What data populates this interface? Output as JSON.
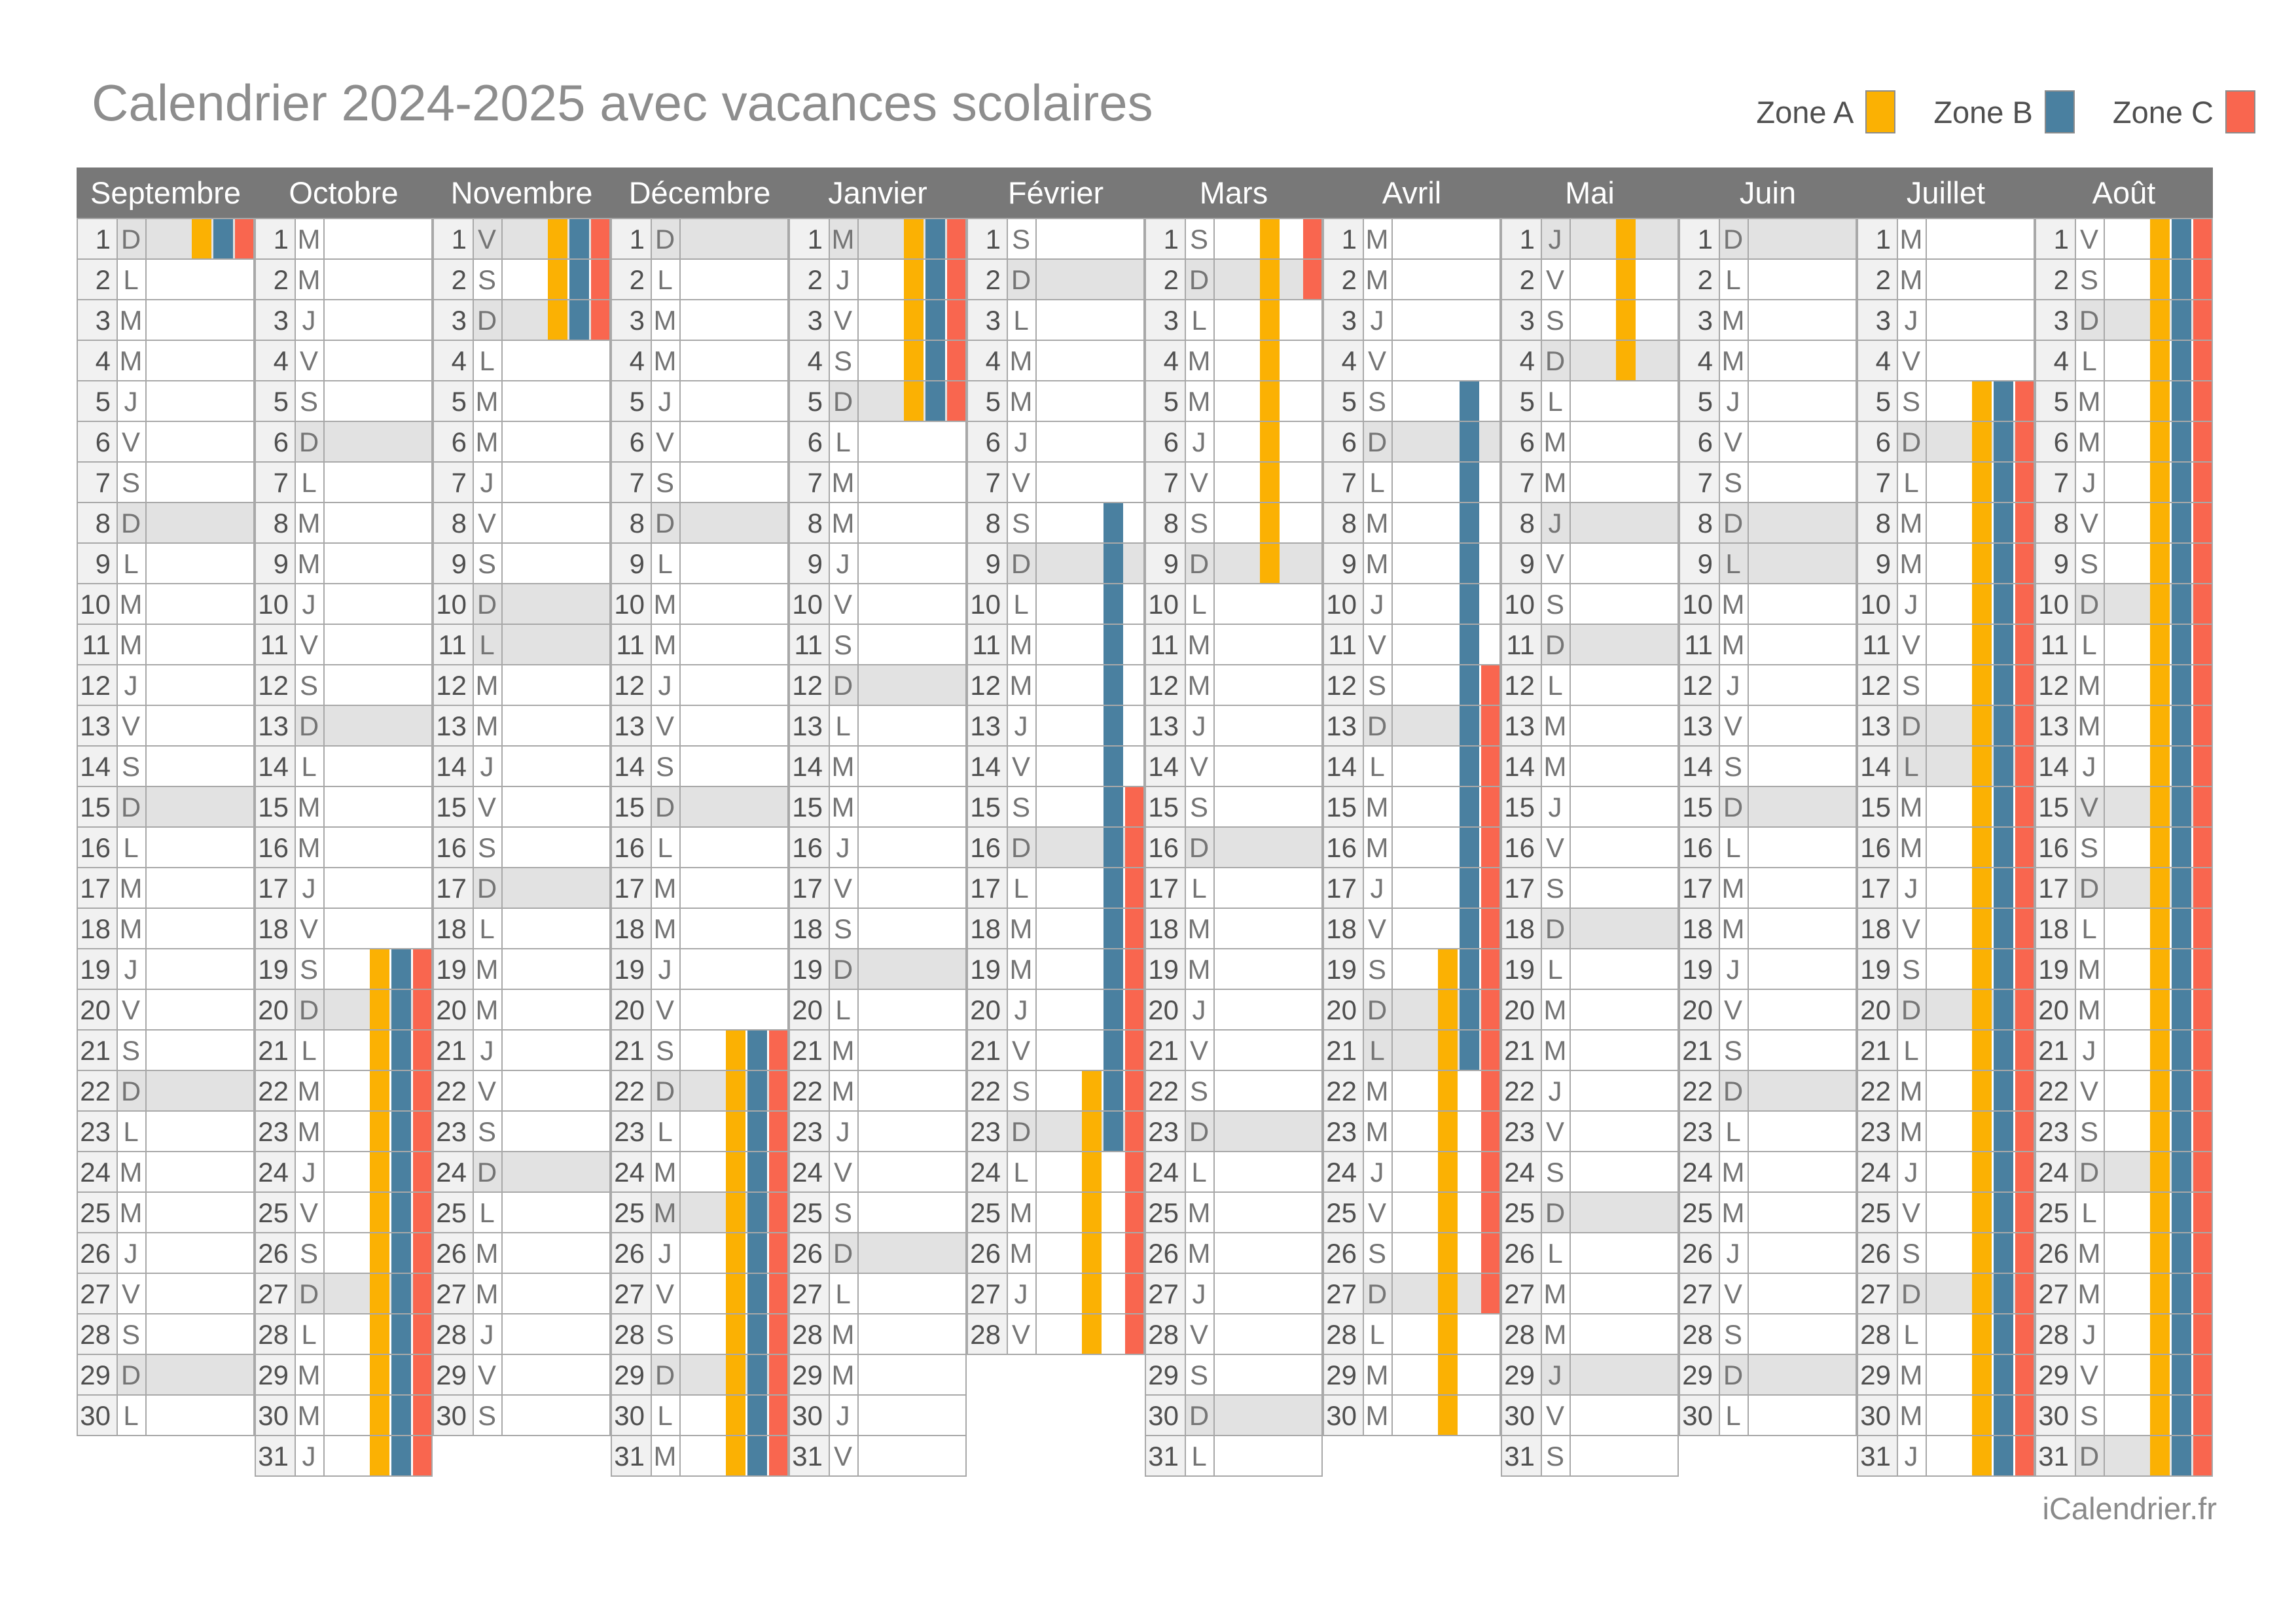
{
  "title": "Calendrier 2024-2025 avec vacances scolaires",
  "footer": "iCalendrier.fr",
  "legend": {
    "items": [
      {
        "label": "Zone A",
        "zone": "A",
        "color": "#FBB103"
      },
      {
        "label": "Zone B",
        "zone": "B",
        "color": "#4A80A0"
      },
      {
        "label": "Zone C",
        "zone": "C",
        "color": "#F9664F"
      }
    ]
  },
  "colors": {
    "zone_a": "#FBB103",
    "zone_b": "#4A80A0",
    "zone_c": "#F9664F",
    "header_bg": "#787878",
    "header_text": "#FFFFFF",
    "title_text": "#8D8D8D",
    "number_cell_bg": "#F1F1F1",
    "weekend_holiday_bg": "#E2E2E2",
    "grid_line": "#A8A8A8",
    "day_number_text": "#4F4F4F",
    "day_letter_text": "#757575",
    "footer_text": "#8A8A8A"
  },
  "months": [
    {
      "name": "Septembre",
      "days": 30,
      "letters": [
        "D",
        "L",
        "M",
        "M",
        "J",
        "V",
        "S",
        "D",
        "L",
        "M",
        "M",
        "J",
        "V",
        "S",
        "D",
        "L",
        "M",
        "M",
        "J",
        "V",
        "S",
        "D",
        "L",
        "M",
        "M",
        "J",
        "V",
        "S",
        "D",
        "L"
      ],
      "shaded_days": [
        1,
        8,
        15,
        22,
        29
      ],
      "holiday_bars": [
        {
          "zone": "A",
          "from": 1,
          "to": 1
        },
        {
          "zone": "B",
          "from": 1,
          "to": 1
        },
        {
          "zone": "C",
          "from": 1,
          "to": 1
        }
      ]
    },
    {
      "name": "Octobre",
      "days": 31,
      "letters": [
        "M",
        "M",
        "J",
        "V",
        "S",
        "D",
        "L",
        "M",
        "M",
        "J",
        "V",
        "S",
        "D",
        "L",
        "M",
        "M",
        "J",
        "V",
        "S",
        "D",
        "L",
        "M",
        "M",
        "J",
        "V",
        "S",
        "D",
        "L",
        "M",
        "M",
        "J"
      ],
      "shaded_days": [
        6,
        13,
        20,
        27
      ],
      "holiday_bars": [
        {
          "zone": "A",
          "from": 19,
          "to": 31
        },
        {
          "zone": "B",
          "from": 19,
          "to": 31
        },
        {
          "zone": "C",
          "from": 19,
          "to": 31
        }
      ]
    },
    {
      "name": "Novembre",
      "days": 30,
      "letters": [
        "V",
        "S",
        "D",
        "L",
        "M",
        "M",
        "J",
        "V",
        "S",
        "D",
        "L",
        "M",
        "M",
        "J",
        "V",
        "S",
        "D",
        "L",
        "M",
        "M",
        "J",
        "V",
        "S",
        "D",
        "L",
        "M",
        "M",
        "J",
        "V",
        "S"
      ],
      "shaded_days": [
        1,
        3,
        10,
        11,
        17,
        24
      ],
      "holiday_bars": [
        {
          "zone": "A",
          "from": 1,
          "to": 3
        },
        {
          "zone": "B",
          "from": 1,
          "to": 3
        },
        {
          "zone": "C",
          "from": 1,
          "to": 3
        }
      ]
    },
    {
      "name": "Décembre",
      "days": 31,
      "letters": [
        "D",
        "L",
        "M",
        "M",
        "J",
        "V",
        "S",
        "D",
        "L",
        "M",
        "M",
        "J",
        "V",
        "S",
        "D",
        "L",
        "M",
        "M",
        "J",
        "V",
        "S",
        "D",
        "L",
        "M",
        "M",
        "J",
        "V",
        "S",
        "D",
        "L",
        "M"
      ],
      "shaded_days": [
        1,
        8,
        15,
        22,
        25,
        29
      ],
      "holiday_bars": [
        {
          "zone": "A",
          "from": 21,
          "to": 31
        },
        {
          "zone": "B",
          "from": 21,
          "to": 31
        },
        {
          "zone": "C",
          "from": 21,
          "to": 31
        }
      ]
    },
    {
      "name": "Janvier",
      "days": 31,
      "letters": [
        "M",
        "J",
        "V",
        "S",
        "D",
        "L",
        "M",
        "M",
        "J",
        "V",
        "S",
        "D",
        "L",
        "M",
        "M",
        "J",
        "V",
        "S",
        "D",
        "L",
        "M",
        "M",
        "J",
        "V",
        "S",
        "D",
        "L",
        "M",
        "M",
        "J",
        "V"
      ],
      "shaded_days": [
        1,
        5,
        12,
        19,
        26
      ],
      "holiday_bars": [
        {
          "zone": "A",
          "from": 1,
          "to": 5
        },
        {
          "zone": "B",
          "from": 1,
          "to": 5
        },
        {
          "zone": "C",
          "from": 1,
          "to": 5
        }
      ]
    },
    {
      "name": "Février",
      "days": 28,
      "letters": [
        "S",
        "D",
        "L",
        "M",
        "M",
        "J",
        "V",
        "S",
        "D",
        "L",
        "M",
        "M",
        "J",
        "V",
        "S",
        "D",
        "L",
        "M",
        "M",
        "J",
        "V",
        "S",
        "D",
        "L",
        "M",
        "M",
        "J",
        "V"
      ],
      "shaded_days": [
        2,
        9,
        16,
        23
      ],
      "holiday_bars": [
        {
          "zone": "A",
          "from": 22,
          "to": 28
        },
        {
          "zone": "B",
          "from": 8,
          "to": 23
        },
        {
          "zone": "C",
          "from": 15,
          "to": 28
        }
      ]
    },
    {
      "name": "Mars",
      "days": 31,
      "letters": [
        "S",
        "D",
        "L",
        "M",
        "M",
        "J",
        "V",
        "S",
        "D",
        "L",
        "M",
        "M",
        "J",
        "V",
        "S",
        "D",
        "L",
        "M",
        "M",
        "J",
        "V",
        "S",
        "D",
        "L",
        "M",
        "M",
        "J",
        "V",
        "S",
        "D",
        "L"
      ],
      "shaded_days": [
        2,
        9,
        16,
        23,
        30
      ],
      "holiday_bars": [
        {
          "zone": "A",
          "from": 1,
          "to": 9
        },
        {
          "zone": "C",
          "from": 1,
          "to": 2
        }
      ]
    },
    {
      "name": "Avril",
      "days": 30,
      "letters": [
        "M",
        "M",
        "J",
        "V",
        "S",
        "D",
        "L",
        "M",
        "M",
        "J",
        "V",
        "S",
        "D",
        "L",
        "M",
        "M",
        "J",
        "V",
        "S",
        "D",
        "L",
        "M",
        "M",
        "J",
        "V",
        "S",
        "D",
        "L",
        "M",
        "M"
      ],
      "shaded_days": [
        6,
        13,
        20,
        21,
        27
      ],
      "holiday_bars": [
        {
          "zone": "A",
          "from": 19,
          "to": 30
        },
        {
          "zone": "B",
          "from": 5,
          "to": 21
        },
        {
          "zone": "C",
          "from": 12,
          "to": 27
        }
      ]
    },
    {
      "name": "Mai",
      "days": 31,
      "letters": [
        "J",
        "V",
        "S",
        "D",
        "L",
        "M",
        "M",
        "J",
        "V",
        "S",
        "D",
        "L",
        "M",
        "M",
        "J",
        "V",
        "S",
        "D",
        "L",
        "M",
        "M",
        "J",
        "V",
        "S",
        "D",
        "L",
        "M",
        "M",
        "J",
        "V",
        "S"
      ],
      "shaded_days": [
        1,
        4,
        8,
        11,
        18,
        25,
        29
      ],
      "holiday_bars": [
        {
          "zone": "A",
          "from": 1,
          "to": 4
        }
      ]
    },
    {
      "name": "Juin",
      "days": 30,
      "letters": [
        "D",
        "L",
        "M",
        "M",
        "J",
        "V",
        "S",
        "D",
        "L",
        "M",
        "M",
        "J",
        "V",
        "S",
        "D",
        "L",
        "M",
        "M",
        "J",
        "V",
        "S",
        "D",
        "L",
        "M",
        "M",
        "J",
        "V",
        "S",
        "D",
        "L"
      ],
      "shaded_days": [
        1,
        8,
        9,
        15,
        22,
        29
      ],
      "holiday_bars": []
    },
    {
      "name": "Juillet",
      "days": 31,
      "letters": [
        "M",
        "M",
        "J",
        "V",
        "S",
        "D",
        "L",
        "M",
        "M",
        "J",
        "V",
        "S",
        "D",
        "L",
        "M",
        "M",
        "J",
        "V",
        "S",
        "D",
        "L",
        "M",
        "M",
        "J",
        "V",
        "S",
        "D",
        "L",
        "M",
        "M",
        "J"
      ],
      "shaded_days": [
        6,
        13,
        14,
        20,
        27
      ],
      "holiday_bars": [
        {
          "zone": "A",
          "from": 5,
          "to": 31
        },
        {
          "zone": "B",
          "from": 5,
          "to": 31
        },
        {
          "zone": "C",
          "from": 5,
          "to": 31
        }
      ]
    },
    {
      "name": "Août",
      "days": 31,
      "letters": [
        "V",
        "S",
        "D",
        "L",
        "M",
        "M",
        "J",
        "V",
        "S",
        "D",
        "L",
        "M",
        "M",
        "J",
        "V",
        "S",
        "D",
        "L",
        "M",
        "M",
        "J",
        "V",
        "S",
        "D",
        "L",
        "M",
        "M",
        "J",
        "V",
        "S",
        "D"
      ],
      "shaded_days": [
        3,
        10,
        15,
        17,
        24,
        31
      ],
      "holiday_bars": [
        {
          "zone": "A",
          "from": 1,
          "to": 31
        },
        {
          "zone": "B",
          "from": 1,
          "to": 31
        },
        {
          "zone": "C",
          "from": 1,
          "to": 31
        }
      ]
    }
  ]
}
